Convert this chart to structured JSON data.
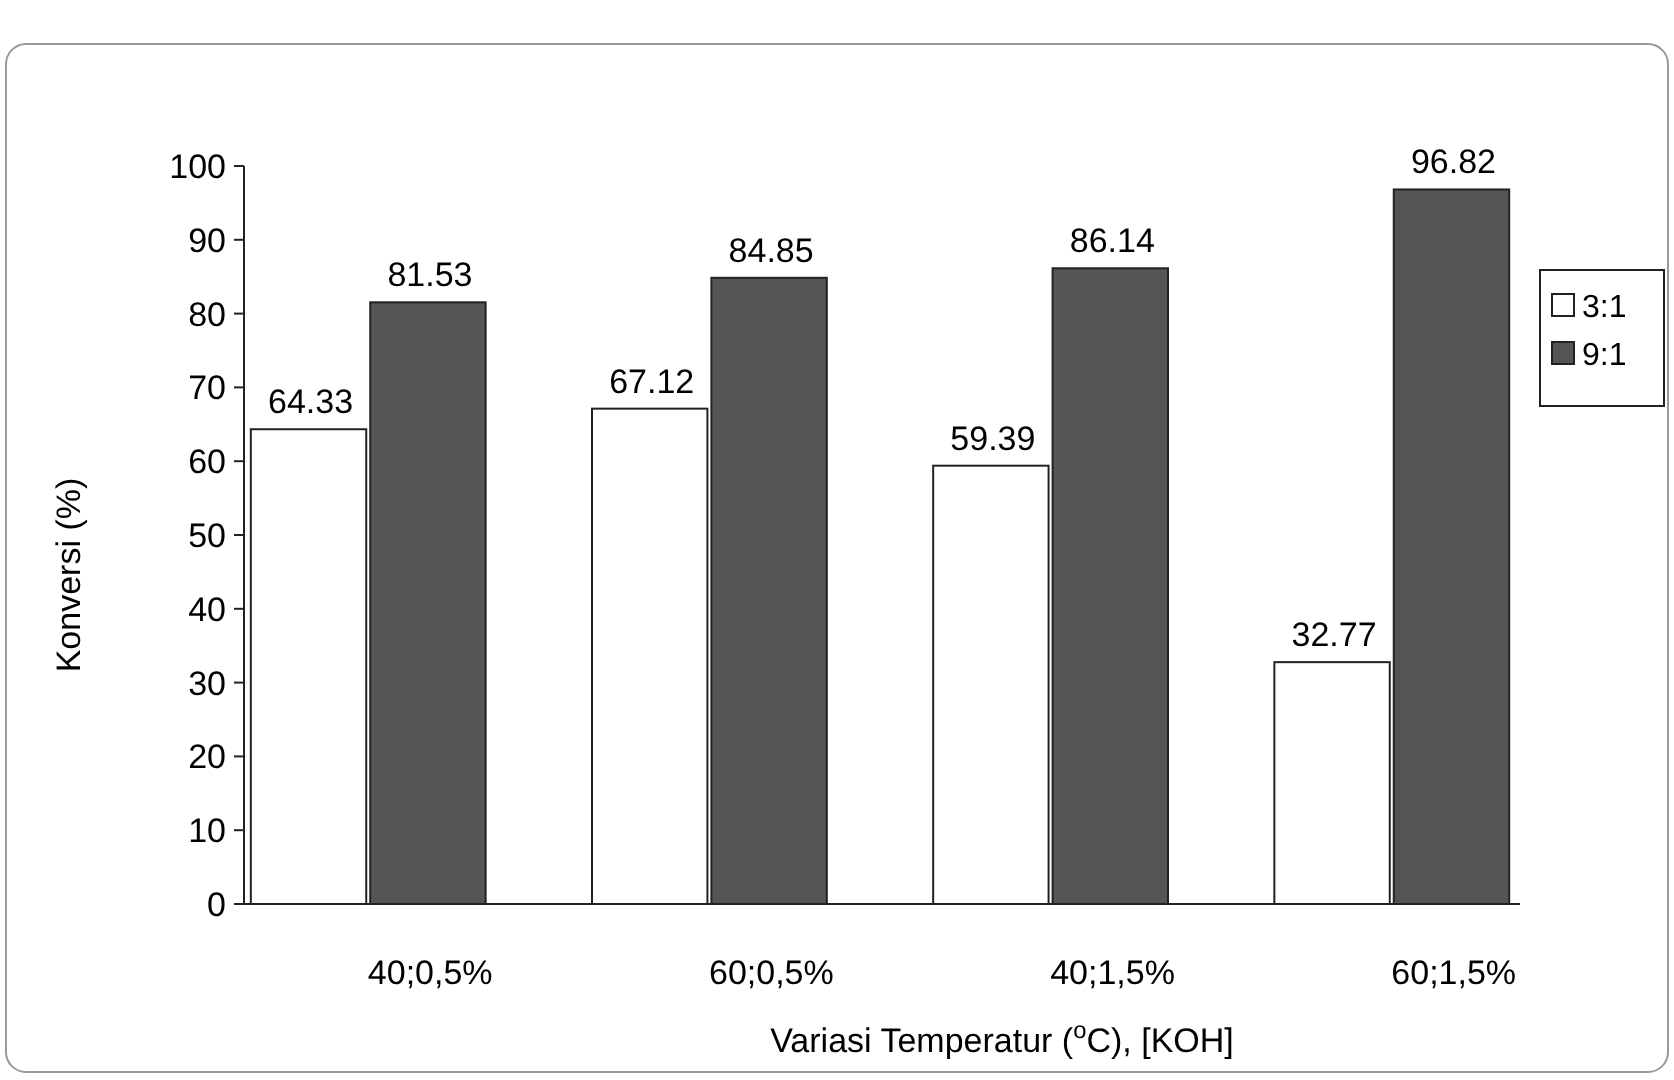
{
  "chart_data": {
    "type": "bar",
    "xlabel": "Variasi Temperatur ($^{o}$C), [KOH]",
    "ylabel": "Konversi (%)",
    "categories": [
      "40;0,5%",
      "60;0,5%",
      "40;1,5%",
      "60;1,5%"
    ],
    "series": [
      {
        "name": "3:1",
        "color": "#ffffff",
        "values": [
          64.33,
          67.12,
          59.39,
          32.77
        ]
      },
      {
        "name": "9:1",
        "color": "#555555",
        "values": [
          81.53,
          84.85,
          86.14,
          96.82
        ]
      }
    ],
    "ylim": [
      0,
      100
    ],
    "yticks": [
      0,
      10,
      20,
      30,
      40,
      50,
      60,
      70,
      80,
      90,
      100
    ],
    "grid": false,
    "legend": "right",
    "data_labels": true
  }
}
